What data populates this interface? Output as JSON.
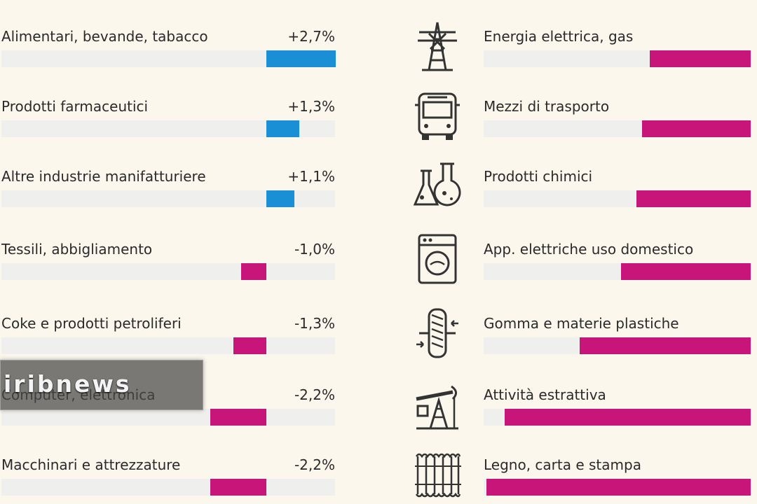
{
  "colors": {
    "positive": "#1a8fd6",
    "negative": "#c7157a",
    "track": "#efefee",
    "background": "#fbf7ed"
  },
  "chart_data": [
    {
      "type": "bar",
      "orientation": "horizontal-diverging",
      "categories": [
        "Alimentari, bevande, tabacco",
        "Prodotti farmaceutici",
        "Altre industrie manifatturiere",
        "Tessili, abbigliamento",
        "Coke e prodotti petroliferi",
        "Computer, elettronica",
        "Macchinari e attrezzature"
      ],
      "value_labels": [
        "+2,7%",
        "+1,3%",
        "+1,1%",
        "-1,0%",
        "-1,3%",
        "-2,2%",
        "-2,2%"
      ],
      "values": [
        2.7,
        1.3,
        1.1,
        -1.0,
        -1.3,
        -2.2,
        -2.2
      ],
      "unit": "%"
    },
    {
      "type": "bar",
      "orientation": "horizontal",
      "categories": [
        "Energia elettrica, gas",
        "Mezzi di trasporto",
        "Prodotti chimici",
        "App. elettriche uso domestico",
        "Gomma e materie plastiche",
        "Attività estrattiva",
        "Legno, carta e stampa"
      ],
      "icons": [
        "power-pylon-icon",
        "bus-icon",
        "chemical-flasks-icon",
        "washing-machine-icon",
        "tire-icon",
        "oil-pump-icon",
        "paper-rolls-icon"
      ],
      "values": [
        -3.9,
        -4.2,
        -4.4,
        -5.0,
        -6.6,
        -9.5,
        -10.2
      ],
      "unit": "%"
    }
  ],
  "watermark": {
    "text": "iribnews"
  }
}
